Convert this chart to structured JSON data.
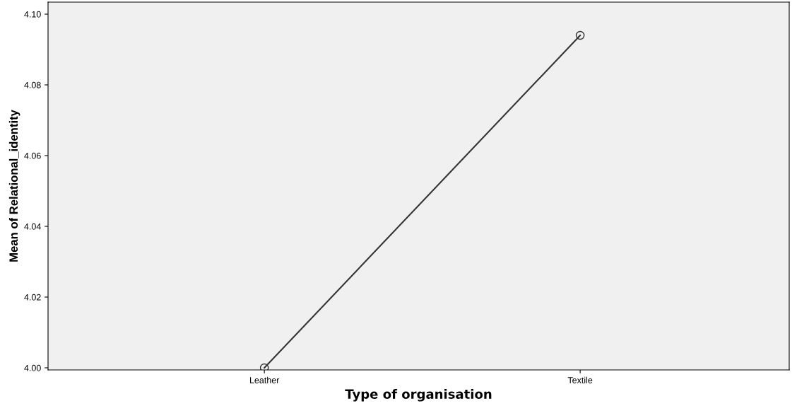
{
  "chart_data": {
    "type": "line",
    "xlabel": "Type of organisation",
    "ylabel": "Mean of Relational_identity",
    "categories": [
      "Leather",
      "Textile"
    ],
    "series": [
      {
        "color": "#333333",
        "values": [
          4.0,
          4.094
        ]
      }
    ],
    "ylim": [
      3.9994,
      4.1034
    ],
    "yticks": [
      {
        "value": 4.0,
        "label": "4.00"
      },
      {
        "value": 4.02,
        "label": "4.02"
      },
      {
        "value": 4.04,
        "label": "4.04"
      },
      {
        "value": 4.06,
        "label": "4.06"
      },
      {
        "value": 4.08,
        "label": "4.08"
      },
      {
        "value": 4.1,
        "label": "4.10"
      }
    ],
    "grid": false,
    "legend": false,
    "marker": "circle",
    "line_style": "solid"
  }
}
